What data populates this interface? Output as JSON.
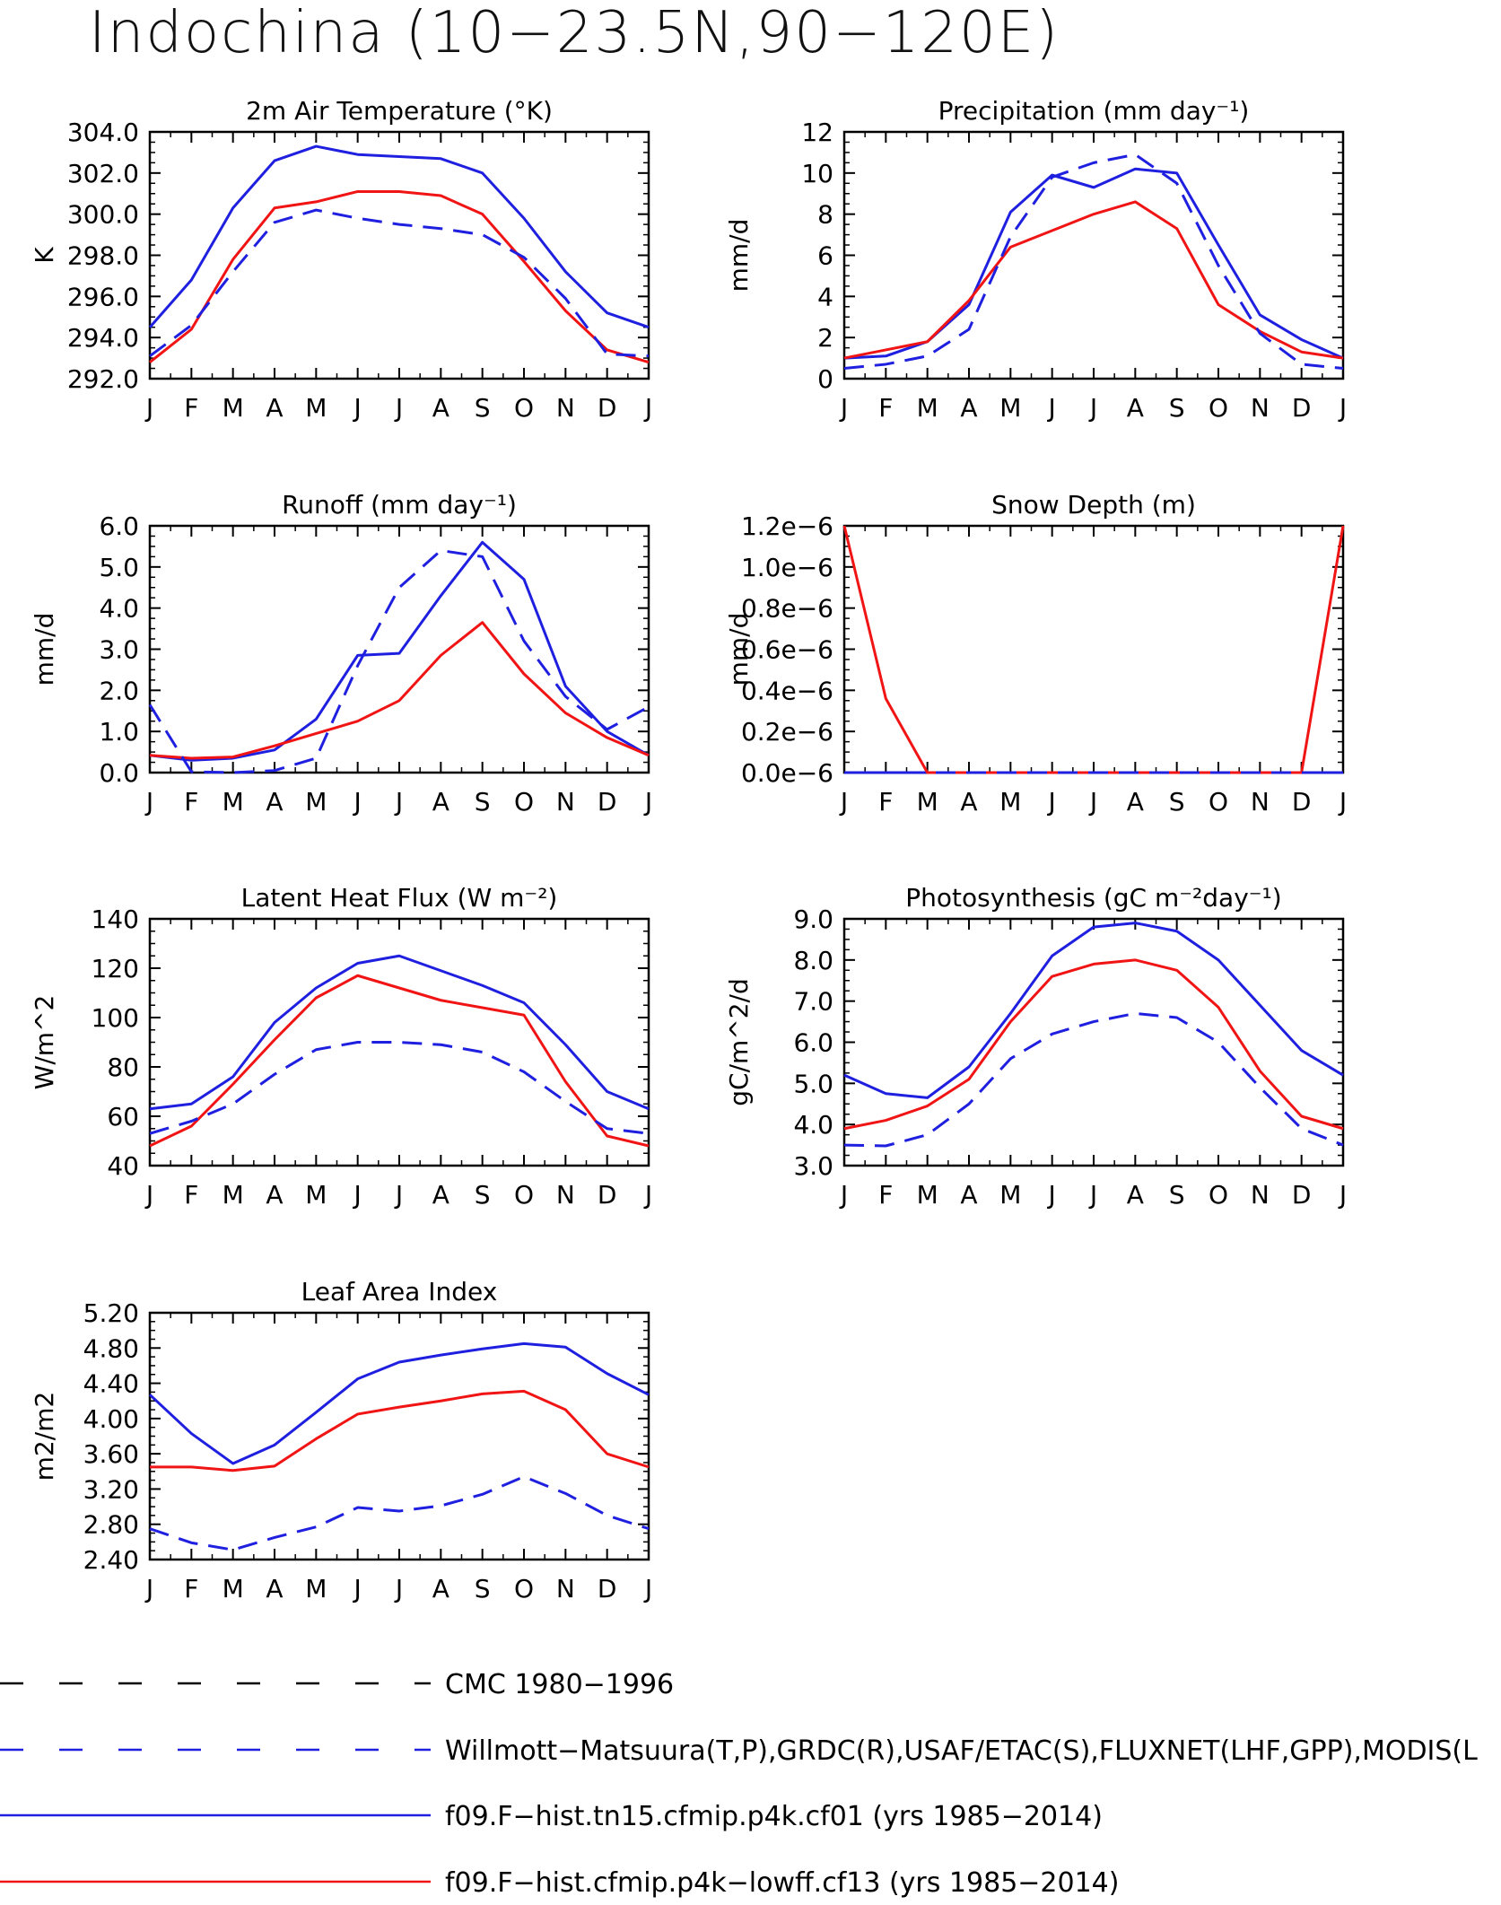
{
  "title": "Indochina (10−23.5N,90−120E)",
  "colors": {
    "blue": "#1f1fe0",
    "red": "#f01414",
    "black": "#000000"
  },
  "legend": [
    {
      "label": "CMC 1980−1996",
      "color": "#000000",
      "dash": "dashed"
    },
    {
      "label": "Willmott−Matsuura(T,P),GRDC(R),USAF/ETAC(S),FLUXNET(LHF,GPP),MODIS(L",
      "color": "#1f1fe0",
      "dash": "dashed"
    },
    {
      "label": "f09.F−hist.tn15.cfmip.p4k.cf01 (yrs 1985−2014)",
      "color": "#1f1fe0",
      "dash": "solid"
    },
    {
      "label": "f09.F−hist.cfmip.p4k−lowff.cf13 (yrs 1985−2014)",
      "color": "#f01414",
      "dash": "solid"
    }
  ],
  "chart_data": [
    {
      "type": "line",
      "title": "2m Air Temperature (°K)",
      "ylabel": "K",
      "x": [
        "J",
        "F",
        "M",
        "A",
        "M",
        "J",
        "J",
        "A",
        "S",
        "O",
        "N",
        "D",
        "J"
      ],
      "ylim": [
        292,
        304
      ],
      "yticks": [
        "292.0",
        "294.0",
        "296.0",
        "298.0",
        "300.0",
        "302.0",
        "304.0"
      ],
      "series": [
        {
          "values": [
            294.5,
            296.8,
            300.3,
            302.6,
            303.3,
            302.9,
            302.8,
            302.7,
            302.0,
            299.8,
            297.2,
            295.2,
            294.5
          ],
          "color": "#1f1fe0",
          "dash": "solid"
        },
        {
          "values": [
            292.8,
            294.4,
            297.8,
            300.3,
            300.6,
            301.1,
            301.1,
            300.9,
            300.0,
            297.7,
            295.3,
            293.4,
            292.8
          ],
          "color": "#f01414",
          "dash": "solid"
        },
        {
          "values": [
            293.1,
            294.6,
            297.2,
            299.6,
            300.2,
            299.8,
            299.5,
            299.3,
            299.0,
            297.9,
            295.9,
            293.2,
            293.1
          ],
          "color": "#1f1fe0",
          "dash": "dashed"
        }
      ]
    },
    {
      "type": "line",
      "title": "Precipitation (mm day⁻¹)",
      "ylabel": "mm/d",
      "x": [
        "J",
        "F",
        "M",
        "A",
        "M",
        "J",
        "J",
        "A",
        "S",
        "O",
        "N",
        "D",
        "J"
      ],
      "ylim": [
        0,
        12
      ],
      "yticks": [
        "0",
        "2",
        "4",
        "6",
        "8",
        "10",
        "12"
      ],
      "series": [
        {
          "values": [
            1.0,
            1.1,
            1.8,
            3.6,
            8.1,
            9.9,
            9.3,
            10.2,
            10.0,
            6.5,
            3.1,
            1.9,
            1.0
          ],
          "color": "#1f1fe0",
          "dash": "solid"
        },
        {
          "values": [
            1.0,
            1.4,
            1.8,
            3.8,
            6.4,
            7.2,
            8.0,
            8.6,
            7.3,
            3.6,
            2.3,
            1.3,
            1.0
          ],
          "color": "#f01414",
          "dash": "solid"
        },
        {
          "values": [
            0.5,
            0.7,
            1.1,
            2.4,
            6.9,
            9.8,
            10.5,
            10.9,
            9.5,
            5.5,
            2.2,
            0.7,
            0.5
          ],
          "color": "#1f1fe0",
          "dash": "dashed"
        }
      ]
    },
    {
      "type": "line",
      "title": "Runoff (mm day⁻¹)",
      "ylabel": "mm/d",
      "x": [
        "J",
        "F",
        "M",
        "A",
        "M",
        "J",
        "J",
        "A",
        "S",
        "O",
        "N",
        "D",
        "J"
      ],
      "ylim": [
        0,
        6
      ],
      "yticks": [
        "0.0",
        "1.0",
        "2.0",
        "3.0",
        "4.0",
        "5.0",
        "6.0"
      ],
      "series": [
        {
          "values": [
            0.42,
            0.3,
            0.35,
            0.55,
            1.3,
            2.85,
            2.9,
            4.3,
            5.6,
            4.7,
            2.1,
            1.0,
            0.42
          ],
          "color": "#1f1fe0",
          "dash": "solid"
        },
        {
          "values": [
            0.42,
            0.35,
            0.38,
            0.65,
            0.95,
            1.25,
            1.75,
            2.85,
            3.65,
            2.4,
            1.45,
            0.85,
            0.42
          ],
          "color": "#f01414",
          "dash": "solid"
        },
        {
          "values": [
            1.65,
            0.02,
            0.0,
            0.05,
            0.35,
            2.6,
            4.5,
            5.4,
            5.25,
            3.2,
            1.85,
            1.05,
            1.6
          ],
          "color": "#1f1fe0",
          "dash": "dashed"
        }
      ]
    },
    {
      "type": "line",
      "title": "Snow Depth (m)",
      "ylabel": "mm/d",
      "x": [
        "J",
        "F",
        "M",
        "A",
        "M",
        "J",
        "J",
        "A",
        "S",
        "O",
        "N",
        "D",
        "J"
      ],
      "ylim": [
        0,
        1.2
      ],
      "yticks": [
        "0.0e−6",
        "0.2e−6",
        "0.4e−6",
        "0.6e−6",
        "0.8e−6",
        "1.0e−6",
        "1.2e−6"
      ],
      "series": [
        {
          "values": [
            0,
            0,
            0,
            0,
            0,
            0,
            0,
            0,
            0,
            0,
            0,
            0,
            0
          ],
          "color": "#1f1fe0",
          "dash": "solid"
        },
        {
          "values": [
            1.2,
            0.36,
            0,
            0,
            0,
            0,
            0,
            0,
            0,
            0,
            0,
            0,
            1.2
          ],
          "color": "#f01414",
          "dash": "solid"
        },
        {
          "values": [
            0,
            0,
            0,
            0,
            0,
            0,
            0,
            0,
            0,
            0,
            0,
            0,
            0
          ],
          "color": "#1f1fe0",
          "dash": "dashed"
        }
      ]
    },
    {
      "type": "line",
      "title": "Latent Heat Flux (W m⁻²)",
      "ylabel": "W/m^2",
      "x": [
        "J",
        "F",
        "M",
        "A",
        "M",
        "J",
        "J",
        "A",
        "S",
        "O",
        "N",
        "D",
        "J"
      ],
      "ylim": [
        40,
        140
      ],
      "yticks": [
        "40",
        "60",
        "80",
        "100",
        "120",
        "140"
      ],
      "series": [
        {
          "values": [
            63,
            65,
            76,
            98,
            112,
            122,
            125,
            119,
            113,
            106,
            89,
            70,
            63
          ],
          "color": "#1f1fe0",
          "dash": "solid"
        },
        {
          "values": [
            48,
            56,
            73,
            91,
            108,
            117,
            112,
            107,
            104,
            101,
            74,
            52,
            48
          ],
          "color": "#f01414",
          "dash": "solid"
        },
        {
          "values": [
            53,
            58,
            65,
            77,
            87,
            90,
            90,
            89,
            86,
            78,
            66,
            55,
            53
          ],
          "color": "#1f1fe0",
          "dash": "dashed"
        }
      ]
    },
    {
      "type": "line",
      "title": "Photosynthesis (gC m⁻²day⁻¹)",
      "ylabel": "gC/m^2/d",
      "x": [
        "J",
        "F",
        "M",
        "A",
        "M",
        "J",
        "J",
        "A",
        "S",
        "O",
        "N",
        "D",
        "J"
      ],
      "ylim": [
        3,
        9
      ],
      "yticks": [
        "3.0",
        "4.0",
        "5.0",
        "6.0",
        "7.0",
        "8.0",
        "9.0"
      ],
      "series": [
        {
          "values": [
            5.2,
            4.75,
            4.65,
            5.4,
            6.7,
            8.1,
            8.8,
            8.9,
            8.7,
            8.0,
            6.9,
            5.8,
            5.2
          ],
          "color": "#1f1fe0",
          "dash": "solid"
        },
        {
          "values": [
            3.9,
            4.1,
            4.45,
            5.1,
            6.5,
            7.6,
            7.9,
            8.0,
            7.75,
            6.85,
            5.3,
            4.2,
            3.9
          ],
          "color": "#f01414",
          "dash": "solid"
        },
        {
          "values": [
            3.5,
            3.48,
            3.75,
            4.5,
            5.6,
            6.2,
            6.5,
            6.7,
            6.6,
            6.0,
            4.9,
            3.9,
            3.5
          ],
          "color": "#1f1fe0",
          "dash": "dashed"
        }
      ]
    },
    {
      "type": "line",
      "title": "Leaf Area Index",
      "ylabel": "m2/m2",
      "x": [
        "J",
        "F",
        "M",
        "A",
        "M",
        "J",
        "J",
        "A",
        "S",
        "O",
        "N",
        "D",
        "J"
      ],
      "ylim": [
        2.4,
        5.2
      ],
      "yticks": [
        "2.40",
        "2.80",
        "3.20",
        "3.60",
        "4.00",
        "4.40",
        "4.80",
        "5.20"
      ],
      "series": [
        {
          "values": [
            4.27,
            3.83,
            3.49,
            3.7,
            4.07,
            4.45,
            4.64,
            4.72,
            4.79,
            4.85,
            4.81,
            4.51,
            4.27
          ],
          "color": "#1f1fe0",
          "dash": "solid"
        },
        {
          "values": [
            3.45,
            3.45,
            3.41,
            3.46,
            3.77,
            4.05,
            4.13,
            4.2,
            4.28,
            4.31,
            4.1,
            3.6,
            3.45
          ],
          "color": "#f01414",
          "dash": "solid"
        },
        {
          "values": [
            2.75,
            2.59,
            2.51,
            2.65,
            2.77,
            2.99,
            2.95,
            3.01,
            3.14,
            3.34,
            3.15,
            2.9,
            2.75
          ],
          "color": "#1f1fe0",
          "dash": "dashed"
        }
      ]
    }
  ]
}
